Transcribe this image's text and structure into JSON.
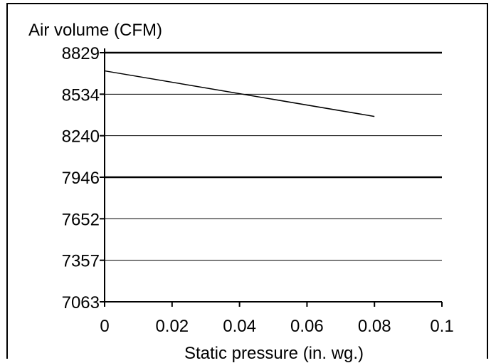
{
  "chart_data": {
    "type": "line",
    "title": "",
    "ylabel": "Air volume (CFM)",
    "xlabel": "Static pressure (in. wg.)",
    "xlim": [
      0,
      0.1
    ],
    "ylim": [
      7063,
      8829
    ],
    "x_ticks": [
      "0",
      "0.02",
      "0.04",
      "0.06",
      "0.08",
      "0.1"
    ],
    "y_ticks": [
      "7063",
      "7357",
      "7652",
      "7946",
      "8240",
      "8534",
      "8829"
    ],
    "grid": true,
    "series": [
      {
        "x": [
          0,
          0.08
        ],
        "values": [
          8700,
          8377
        ]
      }
    ]
  }
}
